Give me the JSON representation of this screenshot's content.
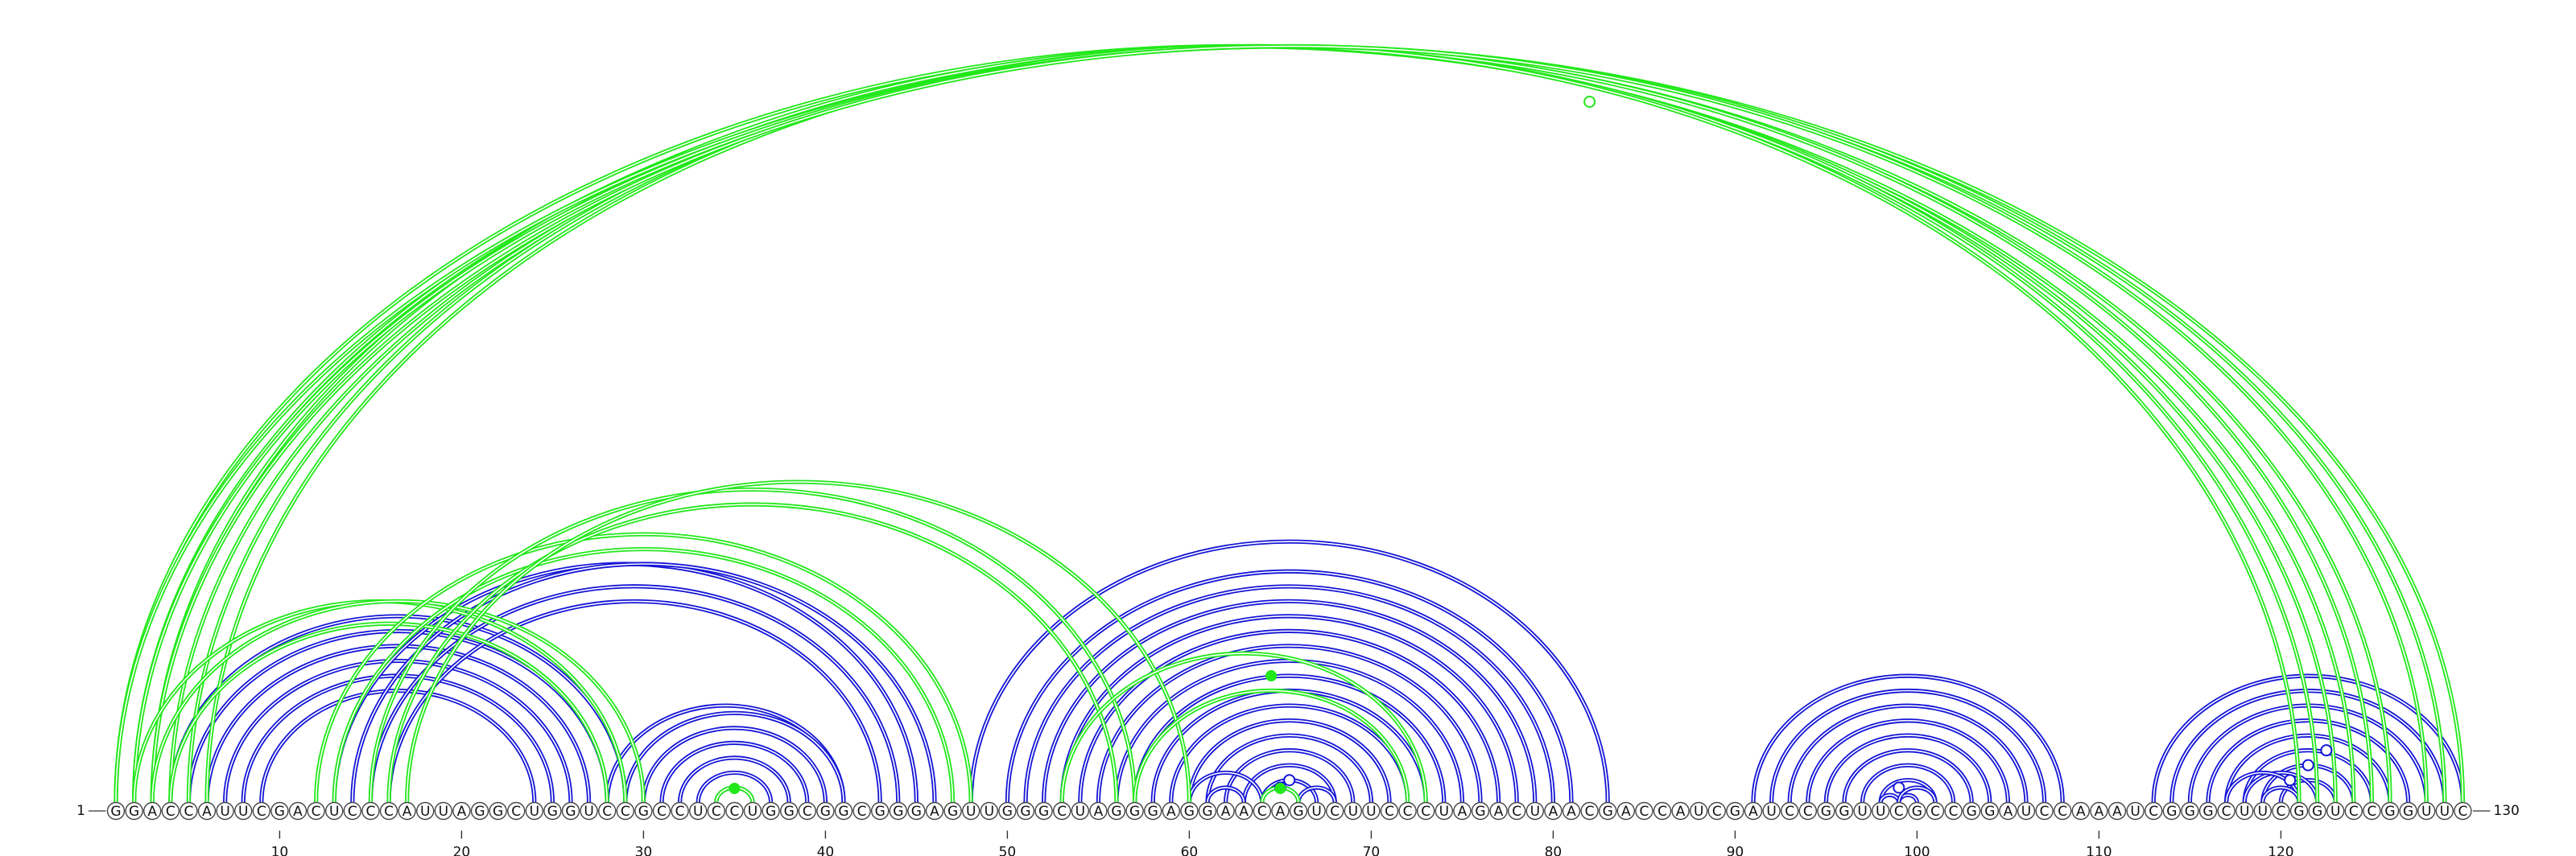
{
  "sequence": "GGACCAUUCGACUCCCAUUAGGCUGGUCCGCCUCCUGGCGGCGGGAGUUGGGCUAGGGAGGAACAGUCUUCCCUAGACUAACGACCAUCGAUCCGGUUCGCCGGAUCCAAAUCGGGCUUCGGUCCGGUUC",
  "start_label": "1",
  "end_label": "130",
  "ticks": [
    "10",
    "20",
    "30",
    "40",
    "50",
    "60",
    "70",
    "80",
    "90",
    "100",
    "110",
    "120"
  ],
  "colors": {
    "blue": "#1515d6",
    "green": "#22e81a",
    "circle_stroke": "#444444",
    "backbone": "#555555"
  },
  "arcs": {
    "blue": [
      [
        4,
        29
      ],
      [
        5,
        28
      ],
      [
        6,
        27
      ],
      [
        7,
        26
      ],
      [
        8,
        25
      ],
      [
        9,
        24
      ],
      [
        13,
        45
      ],
      [
        14,
        46
      ],
      [
        15,
        44
      ],
      [
        16,
        43
      ],
      [
        28,
        41
      ],
      [
        29,
        41
      ],
      [
        30,
        40
      ],
      [
        31,
        39
      ],
      [
        32,
        38
      ],
      [
        33,
        37
      ],
      [
        34,
        36
      ],
      [
        48,
        83
      ],
      [
        50,
        81
      ],
      [
        51,
        80
      ],
      [
        52,
        79
      ],
      [
        53,
        78
      ],
      [
        54,
        77
      ],
      [
        55,
        76
      ],
      [
        56,
        75
      ],
      [
        57,
        74
      ],
      [
        58,
        73
      ],
      [
        59,
        72
      ],
      [
        60,
        71
      ],
      [
        61,
        70
      ],
      [
        62,
        69
      ],
      [
        63,
        68
      ],
      [
        64,
        67
      ],
      [
        60,
        64
      ],
      [
        61,
        63
      ],
      [
        64,
        66
      ],
      [
        66,
        68
      ],
      [
        91,
        108
      ],
      [
        92,
        107
      ],
      [
        93,
        106
      ],
      [
        94,
        105
      ],
      [
        95,
        104
      ],
      [
        96,
        103
      ],
      [
        97,
        102
      ],
      [
        98,
        101
      ],
      [
        99,
        100
      ],
      [
        98,
        99
      ],
      [
        99,
        101
      ],
      [
        113,
        130
      ],
      [
        114,
        129
      ],
      [
        115,
        128
      ],
      [
        116,
        127
      ],
      [
        117,
        126
      ],
      [
        118,
        125
      ],
      [
        119,
        124
      ],
      [
        120,
        123
      ],
      [
        118,
        122
      ],
      [
        117,
        121
      ],
      [
        119,
        121
      ]
    ],
    "green": [
      [
        1,
        124
      ],
      [
        2,
        126
      ],
      [
        3,
        123
      ],
      [
        4,
        125
      ],
      [
        5,
        122
      ],
      [
        6,
        121
      ],
      [
        1,
        130
      ],
      [
        2,
        129
      ],
      [
        3,
        128
      ],
      [
        2,
        29
      ],
      [
        3,
        30
      ],
      [
        4,
        28
      ],
      [
        12,
        48
      ],
      [
        13,
        47
      ],
      [
        15,
        57
      ],
      [
        16,
        56
      ],
      [
        17,
        60
      ],
      [
        34,
        36
      ],
      [
        53,
        73
      ],
      [
        57,
        72
      ],
      [
        64,
        66
      ]
    ]
  },
  "pseudoknot_markers": {
    "open": [
      [
        35,
        129
      ],
      [
        64,
        67
      ],
      [
        64,
        66
      ],
      [
        119,
        122
      ],
      [
        119,
        124
      ],
      [
        119,
        126
      ],
      [
        98,
        100
      ]
    ],
    "filled": [
      [
        35,
        35
      ],
      [
        64,
        65
      ],
      [
        64,
        64
      ]
    ]
  }
}
